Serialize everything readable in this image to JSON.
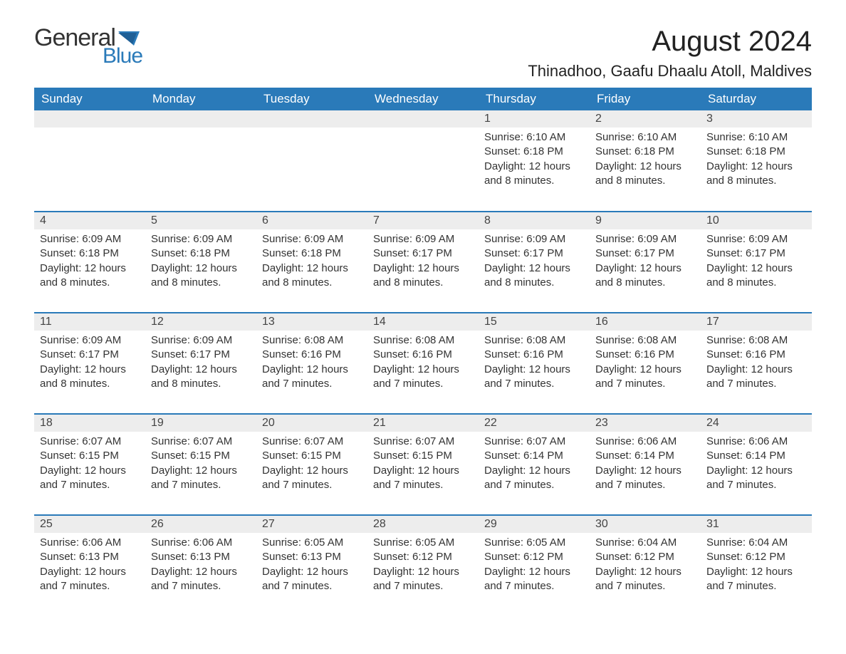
{
  "logo": {
    "general": "General",
    "blue": "Blue"
  },
  "title": "August 2024",
  "location": "Thinadhoo, Gaafu Dhaalu Atoll, Maldives",
  "colors": {
    "header_bg": "#2a7ab9",
    "header_text": "#ffffff",
    "daynum_bg": "#ededed",
    "text": "#333333",
    "accent": "#2a7ab9",
    "background": "#ffffff"
  },
  "fonts": {
    "title_size": 40,
    "location_size": 22,
    "th_size": 17,
    "body_size": 15
  },
  "day_headers": [
    "Sunday",
    "Monday",
    "Tuesday",
    "Wednesday",
    "Thursday",
    "Friday",
    "Saturday"
  ],
  "weeks": [
    [
      {
        "num": "",
        "sunrise": "",
        "sunset": "",
        "daylight": ""
      },
      {
        "num": "",
        "sunrise": "",
        "sunset": "",
        "daylight": ""
      },
      {
        "num": "",
        "sunrise": "",
        "sunset": "",
        "daylight": ""
      },
      {
        "num": "",
        "sunrise": "",
        "sunset": "",
        "daylight": ""
      },
      {
        "num": "1",
        "sunrise": "Sunrise: 6:10 AM",
        "sunset": "Sunset: 6:18 PM",
        "daylight": "Daylight: 12 hours and 8 minutes."
      },
      {
        "num": "2",
        "sunrise": "Sunrise: 6:10 AM",
        "sunset": "Sunset: 6:18 PM",
        "daylight": "Daylight: 12 hours and 8 minutes."
      },
      {
        "num": "3",
        "sunrise": "Sunrise: 6:10 AM",
        "sunset": "Sunset: 6:18 PM",
        "daylight": "Daylight: 12 hours and 8 minutes."
      }
    ],
    [
      {
        "num": "4",
        "sunrise": "Sunrise: 6:09 AM",
        "sunset": "Sunset: 6:18 PM",
        "daylight": "Daylight: 12 hours and 8 minutes."
      },
      {
        "num": "5",
        "sunrise": "Sunrise: 6:09 AM",
        "sunset": "Sunset: 6:18 PM",
        "daylight": "Daylight: 12 hours and 8 minutes."
      },
      {
        "num": "6",
        "sunrise": "Sunrise: 6:09 AM",
        "sunset": "Sunset: 6:18 PM",
        "daylight": "Daylight: 12 hours and 8 minutes."
      },
      {
        "num": "7",
        "sunrise": "Sunrise: 6:09 AM",
        "sunset": "Sunset: 6:17 PM",
        "daylight": "Daylight: 12 hours and 8 minutes."
      },
      {
        "num": "8",
        "sunrise": "Sunrise: 6:09 AM",
        "sunset": "Sunset: 6:17 PM",
        "daylight": "Daylight: 12 hours and 8 minutes."
      },
      {
        "num": "9",
        "sunrise": "Sunrise: 6:09 AM",
        "sunset": "Sunset: 6:17 PM",
        "daylight": "Daylight: 12 hours and 8 minutes."
      },
      {
        "num": "10",
        "sunrise": "Sunrise: 6:09 AM",
        "sunset": "Sunset: 6:17 PM",
        "daylight": "Daylight: 12 hours and 8 minutes."
      }
    ],
    [
      {
        "num": "11",
        "sunrise": "Sunrise: 6:09 AM",
        "sunset": "Sunset: 6:17 PM",
        "daylight": "Daylight: 12 hours and 8 minutes."
      },
      {
        "num": "12",
        "sunrise": "Sunrise: 6:09 AM",
        "sunset": "Sunset: 6:17 PM",
        "daylight": "Daylight: 12 hours and 8 minutes."
      },
      {
        "num": "13",
        "sunrise": "Sunrise: 6:08 AM",
        "sunset": "Sunset: 6:16 PM",
        "daylight": "Daylight: 12 hours and 7 minutes."
      },
      {
        "num": "14",
        "sunrise": "Sunrise: 6:08 AM",
        "sunset": "Sunset: 6:16 PM",
        "daylight": "Daylight: 12 hours and 7 minutes."
      },
      {
        "num": "15",
        "sunrise": "Sunrise: 6:08 AM",
        "sunset": "Sunset: 6:16 PM",
        "daylight": "Daylight: 12 hours and 7 minutes."
      },
      {
        "num": "16",
        "sunrise": "Sunrise: 6:08 AM",
        "sunset": "Sunset: 6:16 PM",
        "daylight": "Daylight: 12 hours and 7 minutes."
      },
      {
        "num": "17",
        "sunrise": "Sunrise: 6:08 AM",
        "sunset": "Sunset: 6:16 PM",
        "daylight": "Daylight: 12 hours and 7 minutes."
      }
    ],
    [
      {
        "num": "18",
        "sunrise": "Sunrise: 6:07 AM",
        "sunset": "Sunset: 6:15 PM",
        "daylight": "Daylight: 12 hours and 7 minutes."
      },
      {
        "num": "19",
        "sunrise": "Sunrise: 6:07 AM",
        "sunset": "Sunset: 6:15 PM",
        "daylight": "Daylight: 12 hours and 7 minutes."
      },
      {
        "num": "20",
        "sunrise": "Sunrise: 6:07 AM",
        "sunset": "Sunset: 6:15 PM",
        "daylight": "Daylight: 12 hours and 7 minutes."
      },
      {
        "num": "21",
        "sunrise": "Sunrise: 6:07 AM",
        "sunset": "Sunset: 6:15 PM",
        "daylight": "Daylight: 12 hours and 7 minutes."
      },
      {
        "num": "22",
        "sunrise": "Sunrise: 6:07 AM",
        "sunset": "Sunset: 6:14 PM",
        "daylight": "Daylight: 12 hours and 7 minutes."
      },
      {
        "num": "23",
        "sunrise": "Sunrise: 6:06 AM",
        "sunset": "Sunset: 6:14 PM",
        "daylight": "Daylight: 12 hours and 7 minutes."
      },
      {
        "num": "24",
        "sunrise": "Sunrise: 6:06 AM",
        "sunset": "Sunset: 6:14 PM",
        "daylight": "Daylight: 12 hours and 7 minutes."
      }
    ],
    [
      {
        "num": "25",
        "sunrise": "Sunrise: 6:06 AM",
        "sunset": "Sunset: 6:13 PM",
        "daylight": "Daylight: 12 hours and 7 minutes."
      },
      {
        "num": "26",
        "sunrise": "Sunrise: 6:06 AM",
        "sunset": "Sunset: 6:13 PM",
        "daylight": "Daylight: 12 hours and 7 minutes."
      },
      {
        "num": "27",
        "sunrise": "Sunrise: 6:05 AM",
        "sunset": "Sunset: 6:13 PM",
        "daylight": "Daylight: 12 hours and 7 minutes."
      },
      {
        "num": "28",
        "sunrise": "Sunrise: 6:05 AM",
        "sunset": "Sunset: 6:12 PM",
        "daylight": "Daylight: 12 hours and 7 minutes."
      },
      {
        "num": "29",
        "sunrise": "Sunrise: 6:05 AM",
        "sunset": "Sunset: 6:12 PM",
        "daylight": "Daylight: 12 hours and 7 minutes."
      },
      {
        "num": "30",
        "sunrise": "Sunrise: 6:04 AM",
        "sunset": "Sunset: 6:12 PM",
        "daylight": "Daylight: 12 hours and 7 minutes."
      },
      {
        "num": "31",
        "sunrise": "Sunrise: 6:04 AM",
        "sunset": "Sunset: 6:12 PM",
        "daylight": "Daylight: 12 hours and 7 minutes."
      }
    ]
  ]
}
